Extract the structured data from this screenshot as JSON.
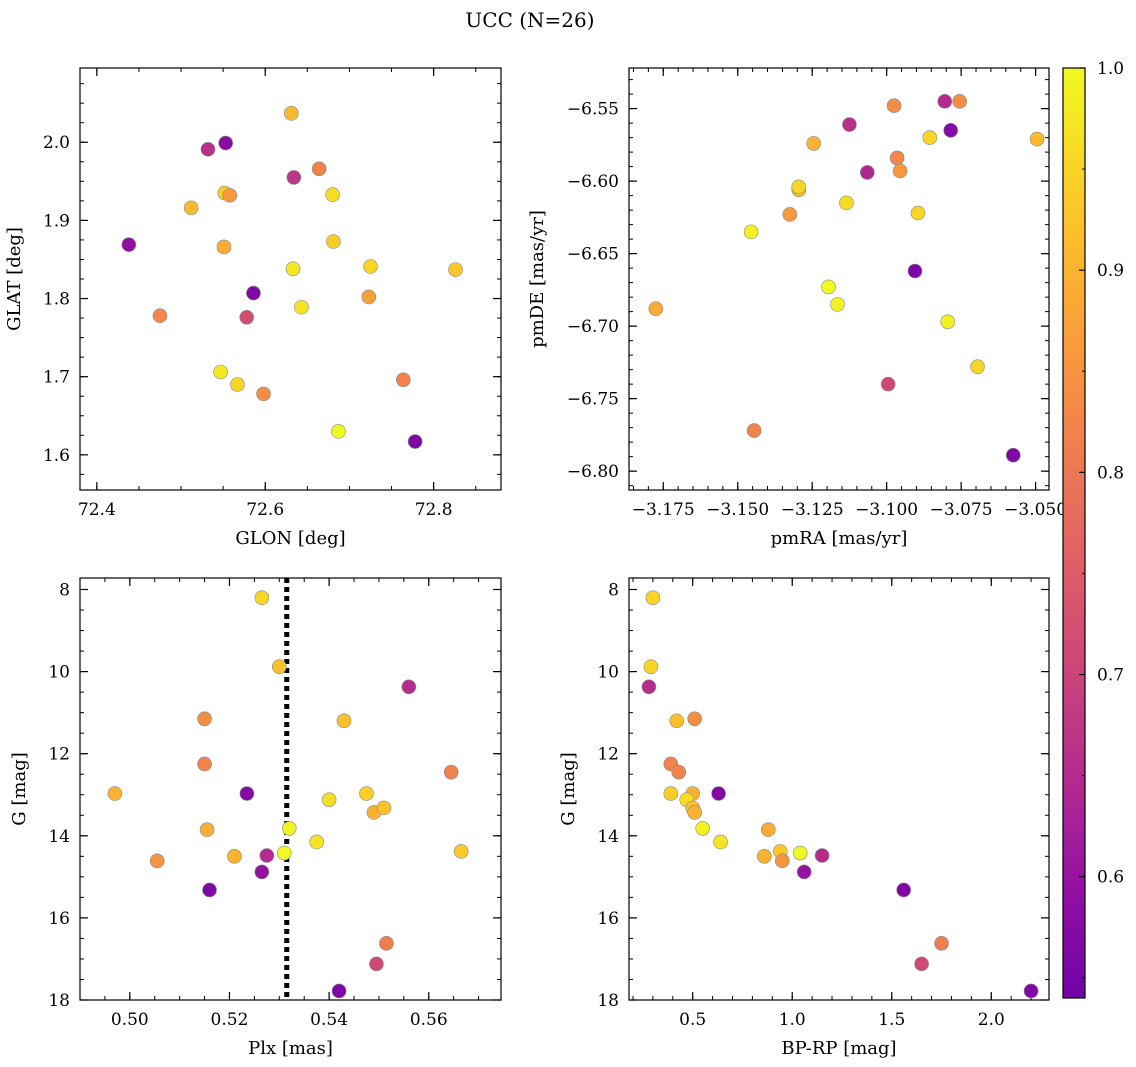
{
  "title": "UCC (N=26)",
  "colorbar": {
    "range": [
      0.54,
      1.0
    ],
    "ticks": [
      "0.6",
      "0.7",
      "0.8",
      "0.9",
      "1.0"
    ],
    "colormap": "plasma"
  },
  "chart_data": [
    {
      "type": "scatter",
      "panel": "top-left",
      "xlabel": "GLON [deg]",
      "ylabel": "GLAT [deg]",
      "xlim": [
        72.38,
        72.88
      ],
      "ylim": [
        1.555,
        2.095
      ],
      "xticks": [
        "72.4",
        "72.6",
        "72.8"
      ],
      "yticks": [
        "1.6",
        "1.7",
        "1.8",
        "1.9",
        "2.0"
      ],
      "points": [
        {
          "x": 72.438,
          "y": 1.869,
          "c": 0.59
        },
        {
          "x": 72.475,
          "y": 1.778,
          "c": 0.83
        },
        {
          "x": 72.512,
          "y": 1.916,
          "c": 0.91
        },
        {
          "x": 72.532,
          "y": 1.991,
          "c": 0.66
        },
        {
          "x": 72.547,
          "y": 1.706,
          "c": 0.98
        },
        {
          "x": 72.551,
          "y": 1.866,
          "c": 0.89
        },
        {
          "x": 72.552,
          "y": 1.935,
          "c": 0.94
        },
        {
          "x": 72.553,
          "y": 1.999,
          "c": 0.58
        },
        {
          "x": 72.558,
          "y": 1.932,
          "c": 0.86
        },
        {
          "x": 72.567,
          "y": 1.69,
          "c": 0.95
        },
        {
          "x": 72.578,
          "y": 1.776,
          "c": 0.72
        },
        {
          "x": 72.586,
          "y": 1.807,
          "c": 0.56
        },
        {
          "x": 72.598,
          "y": 1.678,
          "c": 0.84
        },
        {
          "x": 72.631,
          "y": 2.037,
          "c": 0.91
        },
        {
          "x": 72.633,
          "y": 1.838,
          "c": 0.98
        },
        {
          "x": 72.634,
          "y": 1.955,
          "c": 0.67
        },
        {
          "x": 72.643,
          "y": 1.789,
          "c": 0.97
        },
        {
          "x": 72.664,
          "y": 1.966,
          "c": 0.82
        },
        {
          "x": 72.68,
          "y": 1.933,
          "c": 0.96
        },
        {
          "x": 72.681,
          "y": 1.873,
          "c": 0.94
        },
        {
          "x": 72.687,
          "y": 1.63,
          "c": 1.0
        },
        {
          "x": 72.723,
          "y": 1.802,
          "c": 0.87
        },
        {
          "x": 72.725,
          "y": 1.841,
          "c": 0.95
        },
        {
          "x": 72.764,
          "y": 1.696,
          "c": 0.82
        },
        {
          "x": 72.778,
          "y": 1.617,
          "c": 0.56
        },
        {
          "x": 72.826,
          "y": 1.837,
          "c": 0.93
        }
      ]
    },
    {
      "type": "scatter",
      "panel": "top-right",
      "xlabel": "pmRA [mas/yr]",
      "ylabel": "pmDE [mas/yr]",
      "xlim": [
        -3.1865,
        -3.0455
      ],
      "ylim": [
        -6.813,
        -6.522
      ],
      "xticks": [
        "−3.175",
        "−3.150",
        "−3.125",
        "−3.100",
        "−3.075",
        "−3.050"
      ],
      "xtick_values": [
        -3.175,
        -3.15,
        -3.125,
        -3.1,
        -3.075,
        -3.05
      ],
      "yticks": [
        "−6.55",
        "−6.60",
        "−6.65",
        "−6.70",
        "−6.75",
        "−6.80"
      ],
      "ytick_values": [
        -6.55,
        -6.6,
        -6.65,
        -6.7,
        -6.75,
        -6.8
      ],
      "points": [
        {
          "x": -3.1775,
          "y": -6.688,
          "c": 0.89
        },
        {
          "x": -3.1455,
          "y": -6.635,
          "c": 0.99
        },
        {
          "x": -3.1445,
          "y": -6.772,
          "c": 0.82
        },
        {
          "x": -3.1325,
          "y": -6.623,
          "c": 0.86
        },
        {
          "x": -3.1295,
          "y": -6.606,
          "c": 0.92
        },
        {
          "x": -3.1295,
          "y": -6.604,
          "c": 0.95
        },
        {
          "x": -3.1245,
          "y": -6.574,
          "c": 0.9
        },
        {
          "x": -3.1195,
          "y": -6.673,
          "c": 1.0
        },
        {
          "x": -3.1165,
          "y": -6.685,
          "c": 0.99
        },
        {
          "x": -3.1135,
          "y": -6.615,
          "c": 0.96
        },
        {
          "x": -3.1125,
          "y": -6.561,
          "c": 0.66
        },
        {
          "x": -3.1065,
          "y": -6.594,
          "c": 0.64
        },
        {
          "x": -3.0995,
          "y": -6.74,
          "c": 0.71
        },
        {
          "x": -3.0975,
          "y": -6.548,
          "c": 0.84
        },
        {
          "x": -3.0965,
          "y": -6.584,
          "c": 0.83
        },
        {
          "x": -3.0955,
          "y": -6.593,
          "c": 0.86
        },
        {
          "x": -3.0905,
          "y": -6.662,
          "c": 0.56
        },
        {
          "x": -3.0895,
          "y": -6.622,
          "c": 0.95
        },
        {
          "x": -3.0855,
          "y": -6.57,
          "c": 0.95
        },
        {
          "x": -3.0805,
          "y": -6.545,
          "c": 0.65
        },
        {
          "x": -3.0795,
          "y": -6.697,
          "c": 0.99
        },
        {
          "x": -3.0785,
          "y": -6.565,
          "c": 0.57
        },
        {
          "x": -3.0755,
          "y": -6.545,
          "c": 0.84
        },
        {
          "x": -3.0695,
          "y": -6.728,
          "c": 0.95
        },
        {
          "x": -3.0575,
          "y": -6.789,
          "c": 0.56
        },
        {
          "x": -3.0495,
          "y": -6.571,
          "c": 0.91
        }
      ]
    },
    {
      "type": "scatter",
      "panel": "bottom-left",
      "xlabel": "Plx [mas]",
      "ylabel": "G [mag]",
      "xlim": [
        0.49,
        0.5745
      ],
      "ylim": [
        18.0,
        7.72
      ],
      "y_inverted": true,
      "xticks": [
        "0.50",
        "0.52",
        "0.54",
        "0.56"
      ],
      "xtick_values": [
        0.5,
        0.52,
        0.54,
        0.56
      ],
      "yticks": [
        "8",
        "10",
        "12",
        "14",
        "16",
        "18"
      ],
      "ytick_values": [
        8,
        10,
        12,
        14,
        16,
        18
      ],
      "vline": {
        "x": 0.5315,
        "style": "dotted"
      },
      "points": [
        {
          "x": 0.497,
          "y": 12.97,
          "c": 0.9
        },
        {
          "x": 0.5055,
          "y": 14.61,
          "c": 0.85
        },
        {
          "x": 0.515,
          "y": 11.15,
          "c": 0.84
        },
        {
          "x": 0.515,
          "y": 12.25,
          "c": 0.82
        },
        {
          "x": 0.5155,
          "y": 13.85,
          "c": 0.89
        },
        {
          "x": 0.516,
          "y": 15.32,
          "c": 0.56
        },
        {
          "x": 0.521,
          "y": 14.5,
          "c": 0.9
        },
        {
          "x": 0.5235,
          "y": 12.97,
          "c": 0.57
        },
        {
          "x": 0.5265,
          "y": 8.2,
          "c": 0.95
        },
        {
          "x": 0.5265,
          "y": 14.88,
          "c": 0.6
        },
        {
          "x": 0.5275,
          "y": 14.48,
          "c": 0.65
        },
        {
          "x": 0.53,
          "y": 9.88,
          "c": 0.92
        },
        {
          "x": 0.531,
          "y": 14.42,
          "c": 1.0
        },
        {
          "x": 0.532,
          "y": 13.82,
          "c": 0.99
        },
        {
          "x": 0.5375,
          "y": 14.15,
          "c": 0.97
        },
        {
          "x": 0.54,
          "y": 13.12,
          "c": 0.96
        },
        {
          "x": 0.542,
          "y": 17.78,
          "c": 0.56
        },
        {
          "x": 0.543,
          "y": 11.2,
          "c": 0.92
        },
        {
          "x": 0.5475,
          "y": 12.97,
          "c": 0.94
        },
        {
          "x": 0.549,
          "y": 13.43,
          "c": 0.9
        },
        {
          "x": 0.5495,
          "y": 17.12,
          "c": 0.71
        },
        {
          "x": 0.551,
          "y": 13.32,
          "c": 0.92
        },
        {
          "x": 0.5515,
          "y": 16.62,
          "c": 0.81
        },
        {
          "x": 0.556,
          "y": 10.37,
          "c": 0.65
        },
        {
          "x": 0.5645,
          "y": 12.45,
          "c": 0.82
        },
        {
          "x": 0.5665,
          "y": 14.38,
          "c": 0.93
        }
      ]
    },
    {
      "type": "scatter",
      "panel": "bottom-right",
      "xlabel": "BP-RP [mag]",
      "ylabel": "G [mag]",
      "xlim": [
        0.18,
        2.29
      ],
      "ylim": [
        18.0,
        7.72
      ],
      "y_inverted": true,
      "xticks": [
        "0.5",
        "1.0",
        "1.5",
        "2.0"
      ],
      "xtick_values": [
        0.5,
        1.0,
        1.5,
        2.0
      ],
      "yticks": [
        "8",
        "10",
        "12",
        "14",
        "16",
        "18"
      ],
      "ytick_values": [
        8,
        10,
        12,
        14,
        16,
        18
      ],
      "points": [
        {
          "x": 0.3,
          "y": 8.2,
          "c": 0.95
        },
        {
          "x": 0.29,
          "y": 9.88,
          "c": 0.95
        },
        {
          "x": 0.28,
          "y": 10.37,
          "c": 0.65
        },
        {
          "x": 0.42,
          "y": 11.2,
          "c": 0.92
        },
        {
          "x": 0.51,
          "y": 11.15,
          "c": 0.84
        },
        {
          "x": 0.39,
          "y": 12.25,
          "c": 0.82
        },
        {
          "x": 0.43,
          "y": 12.45,
          "c": 0.82
        },
        {
          "x": 0.39,
          "y": 12.97,
          "c": 0.94
        },
        {
          "x": 0.5,
          "y": 12.97,
          "c": 0.9
        },
        {
          "x": 0.63,
          "y": 12.97,
          "c": 0.57
        },
        {
          "x": 0.47,
          "y": 13.12,
          "c": 0.96
        },
        {
          "x": 0.5,
          "y": 13.32,
          "c": 0.92
        },
        {
          "x": 0.51,
          "y": 13.43,
          "c": 0.9
        },
        {
          "x": 0.55,
          "y": 13.82,
          "c": 0.99
        },
        {
          "x": 0.88,
          "y": 13.85,
          "c": 0.89
        },
        {
          "x": 0.64,
          "y": 14.15,
          "c": 0.97
        },
        {
          "x": 0.94,
          "y": 14.38,
          "c": 0.93
        },
        {
          "x": 1.04,
          "y": 14.42,
          "c": 1.0
        },
        {
          "x": 0.86,
          "y": 14.5,
          "c": 0.9
        },
        {
          "x": 1.15,
          "y": 14.48,
          "c": 0.65
        },
        {
          "x": 0.95,
          "y": 14.61,
          "c": 0.85
        },
        {
          "x": 1.06,
          "y": 14.88,
          "c": 0.6
        },
        {
          "x": 1.56,
          "y": 15.32,
          "c": 0.56
        },
        {
          "x": 1.75,
          "y": 16.62,
          "c": 0.81
        },
        {
          "x": 1.65,
          "y": 17.12,
          "c": 0.71
        },
        {
          "x": 2.2,
          "y": 17.78,
          "c": 0.56
        }
      ]
    }
  ]
}
